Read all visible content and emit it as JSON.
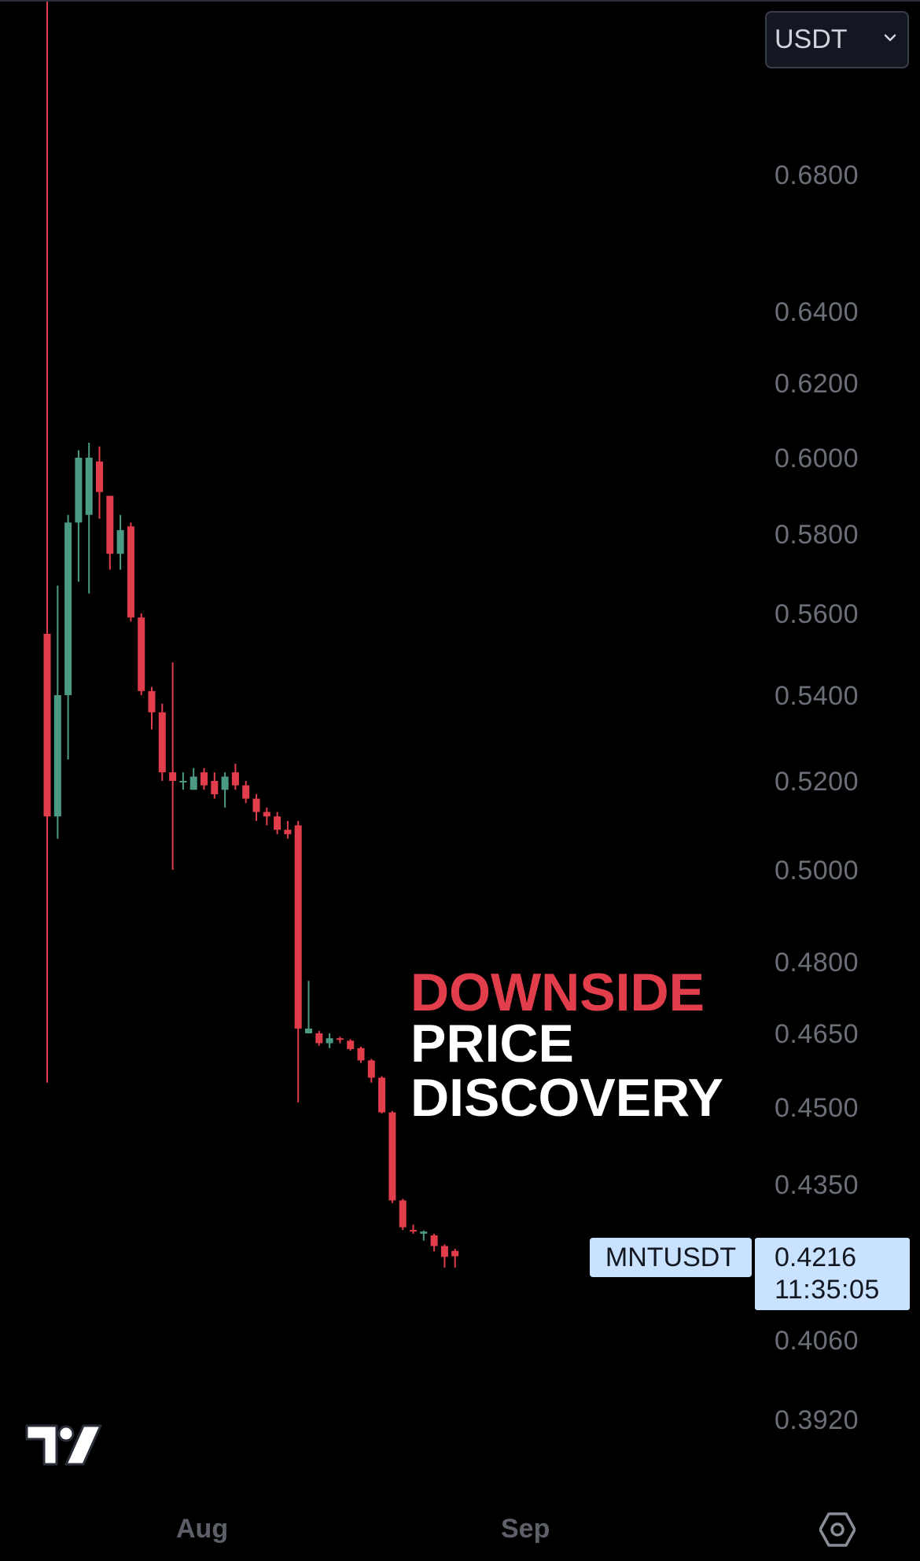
{
  "toolbar": {
    "currency_value": "USDT"
  },
  "symbol": {
    "name": "MNTUSDT",
    "last_price": "0.4216",
    "countdown": "11:35:05"
  },
  "annotation": {
    "line1": "DOWNSIDE",
    "line2": "PRICE",
    "line3": "DISCOVERY"
  },
  "colors": {
    "background": "#000000",
    "up": "#4a9a84",
    "down": "#e23d4a",
    "axis_text": "#6b6f78",
    "price_tag": "#c9e2ff"
  },
  "icons": [
    "tradingview-logo-icon",
    "settings-icon",
    "chevron-down-icon"
  ],
  "chart_data": {
    "type": "candlestick",
    "symbol": "MNTUSDT",
    "y_axis_ticks": [
      "0.6800",
      "0.6400",
      "0.6200",
      "0.6000",
      "0.5800",
      "0.5600",
      "0.5400",
      "0.5200",
      "0.5000",
      "0.4800",
      "0.4650",
      "0.4500",
      "0.4350",
      "0.4060",
      "0.3920"
    ],
    "x_axis_ticks": [
      "Aug",
      "Sep"
    ],
    "candles": [
      {
        "o": 0.555,
        "h": 0.732,
        "l": 0.455,
        "c": 0.512
      },
      {
        "o": 0.512,
        "h": 0.567,
        "l": 0.507,
        "c": 0.54
      },
      {
        "o": 0.54,
        "h": 0.585,
        "l": 0.525,
        "c": 0.583
      },
      {
        "o": 0.583,
        "h": 0.602,
        "l": 0.568,
        "c": 0.6
      },
      {
        "o": 0.585,
        "h": 0.604,
        "l": 0.565,
        "c": 0.6
      },
      {
        "o": 0.599,
        "h": 0.603,
        "l": 0.584,
        "c": 0.591
      },
      {
        "o": 0.59,
        "h": 0.589,
        "l": 0.571,
        "c": 0.575
      },
      {
        "o": 0.575,
        "h": 0.585,
        "l": 0.571,
        "c": 0.581
      },
      {
        "o": 0.582,
        "h": 0.583,
        "l": 0.558,
        "c": 0.559
      },
      {
        "o": 0.559,
        "h": 0.56,
        "l": 0.54,
        "c": 0.541
      },
      {
        "o": 0.541,
        "h": 0.542,
        "l": 0.532,
        "c": 0.536
      },
      {
        "o": 0.536,
        "h": 0.538,
        "l": 0.52,
        "c": 0.522
      },
      {
        "o": 0.522,
        "h": 0.548,
        "l": 0.5,
        "c": 0.52
      },
      {
        "o": 0.52,
        "h": 0.522,
        "l": 0.518,
        "c": 0.52
      },
      {
        "o": 0.518,
        "h": 0.523,
        "l": 0.518,
        "c": 0.521
      },
      {
        "o": 0.522,
        "h": 0.523,
        "l": 0.518,
        "c": 0.519
      },
      {
        "o": 0.52,
        "h": 0.522,
        "l": 0.516,
        "c": 0.517
      },
      {
        "o": 0.518,
        "h": 0.522,
        "l": 0.514,
        "c": 0.521
      },
      {
        "o": 0.522,
        "h": 0.524,
        "l": 0.518,
        "c": 0.519
      },
      {
        "o": 0.519,
        "h": 0.52,
        "l": 0.515,
        "c": 0.516
      },
      {
        "o": 0.516,
        "h": 0.517,
        "l": 0.511,
        "c": 0.513
      },
      {
        "o": 0.513,
        "h": 0.514,
        "l": 0.51,
        "c": 0.512
      },
      {
        "o": 0.512,
        "h": 0.513,
        "l": 0.508,
        "c": 0.509
      },
      {
        "o": 0.509,
        "h": 0.511,
        "l": 0.507,
        "c": 0.508
      },
      {
        "o": 0.51,
        "h": 0.511,
        "l": 0.451,
        "c": 0.466
      },
      {
        "o": 0.465,
        "h": 0.476,
        "l": 0.465,
        "c": 0.466
      },
      {
        "o": 0.465,
        "h": 0.4655,
        "l": 0.4625,
        "c": 0.463
      },
      {
        "o": 0.463,
        "h": 0.465,
        "l": 0.462,
        "c": 0.464
      },
      {
        "o": 0.464,
        "h": 0.4643,
        "l": 0.463,
        "c": 0.4638
      },
      {
        "o": 0.4635,
        "h": 0.4638,
        "l": 0.4615,
        "c": 0.4618
      },
      {
        "o": 0.462,
        "h": 0.4623,
        "l": 0.459,
        "c": 0.4595
      },
      {
        "o": 0.4595,
        "h": 0.4598,
        "l": 0.455,
        "c": 0.456
      },
      {
        "o": 0.456,
        "h": 0.4563,
        "l": 0.4488,
        "c": 0.449
      },
      {
        "o": 0.449,
        "h": 0.4493,
        "l": 0.4315,
        "c": 0.432
      },
      {
        "o": 0.432,
        "h": 0.4323,
        "l": 0.4265,
        "c": 0.427
      },
      {
        "o": 0.4265,
        "h": 0.4275,
        "l": 0.4258,
        "c": 0.4262
      },
      {
        "o": 0.4258,
        "h": 0.4264,
        "l": 0.4245,
        "c": 0.4262
      },
      {
        "o": 0.4255,
        "h": 0.4258,
        "l": 0.4225,
        "c": 0.4235
      },
      {
        "o": 0.4235,
        "h": 0.4238,
        "l": 0.4195,
        "c": 0.4215
      },
      {
        "o": 0.4226,
        "h": 0.423,
        "l": 0.4195,
        "c": 0.4216
      }
    ],
    "last_price": 0.4216
  }
}
